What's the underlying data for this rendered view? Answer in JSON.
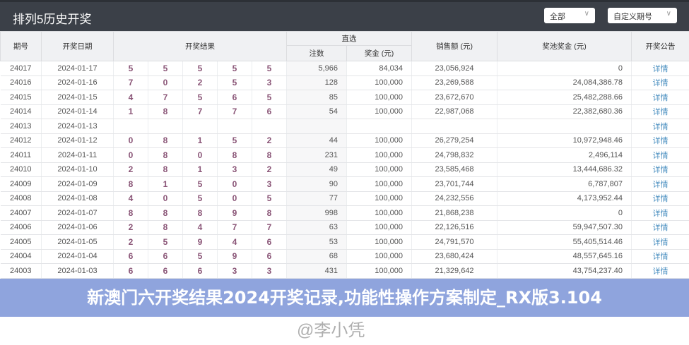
{
  "header": {
    "title": "排列5历史开奖",
    "filter1": "全部",
    "filter2": "自定义期号"
  },
  "columns": {
    "issue": "期号",
    "date": "开奖日期",
    "result": "开奖结果",
    "direct": "直选",
    "bets": "注数",
    "prize": "奖金 (元)",
    "sales": "销售额 (元)",
    "pool": "奖池奖金 (元)",
    "notice": "开奖公告"
  },
  "rows": [
    {
      "issue": "24017",
      "date": "2024-01-17",
      "nums": [
        "5",
        "5",
        "5",
        "5",
        "5"
      ],
      "bets": "5,966",
      "prize": "84,034",
      "sales": "23,056,924",
      "pool": "0",
      "link": "详情"
    },
    {
      "issue": "24016",
      "date": "2024-01-16",
      "nums": [
        "7",
        "0",
        "2",
        "5",
        "3"
      ],
      "bets": "128",
      "prize": "100,000",
      "sales": "23,269,588",
      "pool": "24,084,386.78",
      "link": "详情"
    },
    {
      "issue": "24015",
      "date": "2024-01-15",
      "nums": [
        "4",
        "7",
        "5",
        "6",
        "5"
      ],
      "bets": "85",
      "prize": "100,000",
      "sales": "23,672,670",
      "pool": "25,482,288.66",
      "link": "详情"
    },
    {
      "issue": "24014",
      "date": "2024-01-14",
      "nums": [
        "1",
        "8",
        "7",
        "7",
        "6"
      ],
      "bets": "54",
      "prize": "100,000",
      "sales": "22,987,068",
      "pool": "22,382,680.36",
      "link": "详情"
    },
    {
      "issue": "24013",
      "date": "2024-01-13",
      "nums": [
        "",
        "",
        "",
        "",
        ""
      ],
      "bets": "",
      "prize": "",
      "sales": "",
      "pool": "",
      "link": "详情"
    },
    {
      "issue": "24012",
      "date": "2024-01-12",
      "nums": [
        "0",
        "8",
        "1",
        "5",
        "2"
      ],
      "bets": "44",
      "prize": "100,000",
      "sales": "26,279,254",
      "pool": "10,972,948.46",
      "link": "详情"
    },
    {
      "issue": "24011",
      "date": "2024-01-11",
      "nums": [
        "0",
        "8",
        "0",
        "8",
        "8"
      ],
      "bets": "231",
      "prize": "100,000",
      "sales": "24,798,832",
      "pool": "2,496,114",
      "link": "详情"
    },
    {
      "issue": "24010",
      "date": "2024-01-10",
      "nums": [
        "2",
        "8",
        "1",
        "3",
        "2"
      ],
      "bets": "49",
      "prize": "100,000",
      "sales": "23,585,468",
      "pool": "13,444,686.32",
      "link": "详情"
    },
    {
      "issue": "24009",
      "date": "2024-01-09",
      "nums": [
        "8",
        "1",
        "5",
        "0",
        "3"
      ],
      "bets": "90",
      "prize": "100,000",
      "sales": "23,701,744",
      "pool": "6,787,807",
      "link": "详情"
    },
    {
      "issue": "24008",
      "date": "2024-01-08",
      "nums": [
        "4",
        "0",
        "5",
        "0",
        "5"
      ],
      "bets": "77",
      "prize": "100,000",
      "sales": "24,232,556",
      "pool": "4,173,952.44",
      "link": "详情"
    },
    {
      "issue": "24007",
      "date": "2024-01-07",
      "nums": [
        "8",
        "8",
        "8",
        "9",
        "8"
      ],
      "bets": "998",
      "prize": "100,000",
      "sales": "21,868,238",
      "pool": "0",
      "link": "详情"
    },
    {
      "issue": "24006",
      "date": "2024-01-06",
      "nums": [
        "2",
        "8",
        "4",
        "7",
        "7"
      ],
      "bets": "63",
      "prize": "100,000",
      "sales": "22,126,516",
      "pool": "59,947,507.30",
      "link": "详情"
    },
    {
      "issue": "24005",
      "date": "2024-01-05",
      "nums": [
        "2",
        "5",
        "9",
        "4",
        "6"
      ],
      "bets": "53",
      "prize": "100,000",
      "sales": "24,791,570",
      "pool": "55,405,514.46",
      "link": "详情"
    },
    {
      "issue": "24004",
      "date": "2024-01-04",
      "nums": [
        "6",
        "6",
        "5",
        "9",
        "6"
      ],
      "bets": "68",
      "prize": "100,000",
      "sales": "23,680,424",
      "pool": "48,557,645.16",
      "link": "详情"
    },
    {
      "issue": "24003",
      "date": "2024-01-03",
      "nums": [
        "6",
        "6",
        "6",
        "3",
        "3"
      ],
      "bets": "431",
      "prize": "100,000",
      "sales": "21,329,642",
      "pool": "43,754,237.40",
      "link": "详情"
    }
  ],
  "banner": "新澳门六开奖结果2024开奖记录,功能性操作方案制定_RX版3.104",
  "watermark": "@李小凭"
}
